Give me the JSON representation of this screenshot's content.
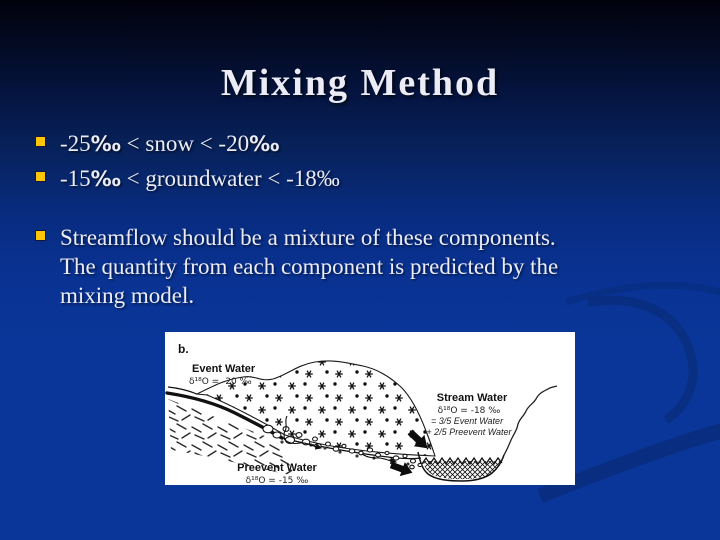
{
  "slide": {
    "title": "Mixing Method",
    "bullets": [
      {
        "lines": [
          [
            {
              "t": "-25"
            },
            {
              "t": "‰",
              "bold": true
            },
            {
              "t": " < snow < -20"
            },
            {
              "t": "‰",
              "bold": true
            }
          ]
        ]
      },
      {
        "lines": [
          [
            {
              "t": "-15"
            },
            {
              "t": "‰",
              "bold": true
            },
            {
              "t": " < groundwater < -18‰"
            }
          ]
        ]
      },
      {
        "spaced": true,
        "lines": [
          [
            {
              "t": "Streamflow should be a mixture of these components."
            }
          ],
          [
            {
              "t": "The quantity from each component is predicted by the"
            }
          ],
          [
            {
              "t": "mixing model."
            }
          ]
        ]
      }
    ]
  },
  "figure": {
    "panel_label": "b.",
    "event_water_title": "Event Water",
    "event_water_delta": "δ¹⁸O = -20 ‰",
    "preevent_water_title": "Preevent Water",
    "preevent_water_delta": "δ¹⁸O = -15 ‰",
    "stream_water_title": "Stream Water",
    "stream_water_delta": "δ¹⁸O = -18 ‰",
    "stream_water_eq1": "= 3/5 Event Water",
    "stream_water_eq2": "+ 2/5 Preevent Water"
  },
  "colors": {
    "bullet_accent": "#ffc608",
    "bullet_accent_border": "#14143c",
    "background_top": "#01010c",
    "background_main": "#0a3699",
    "text": "#ececf6",
    "swirl": "#07276e"
  }
}
